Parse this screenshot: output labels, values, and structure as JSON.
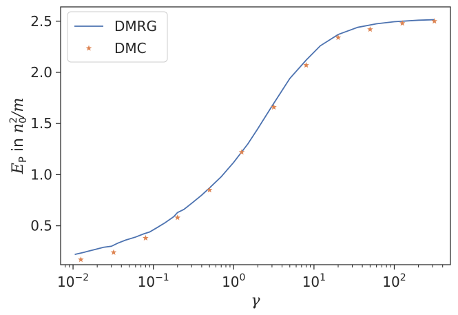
{
  "chart_data": {
    "type": "line",
    "xscale": "log",
    "xlim": [
      0.007,
      500
    ],
    "ylim": [
      0.12,
      2.64
    ],
    "xlabel": "γ",
    "ylabel": {
      "main": "E",
      "sub": "P",
      "mid": " in ",
      "n": "n",
      "nsub": "0",
      "nsup": "2",
      "tail": "/m"
    },
    "legend": {
      "placement": "top-left"
    },
    "x_ticks": [
      {
        "value": 0.01,
        "base": "10",
        "exp": "−2"
      },
      {
        "value": 0.1,
        "base": "10",
        "exp": "−1"
      },
      {
        "value": 1,
        "base": "10",
        "exp": "0"
      },
      {
        "value": 10,
        "base": "10",
        "exp": "1"
      },
      {
        "value": 100,
        "base": "10",
        "exp": "2"
      }
    ],
    "y_ticks": [
      {
        "value": 0.5,
        "label": "0.5"
      },
      {
        "value": 1.0,
        "label": "1.0"
      },
      {
        "value": 1.5,
        "label": "1.5"
      },
      {
        "value": 2.0,
        "label": "2.0"
      },
      {
        "value": 2.5,
        "label": "2.5"
      }
    ],
    "series": [
      {
        "name": "DMRG",
        "kind": "line",
        "color": "#4c72b0",
        "x": [
          0.0105,
          0.0135,
          0.018,
          0.024,
          0.03,
          0.036,
          0.045,
          0.06,
          0.075,
          0.09,
          0.11,
          0.14,
          0.18,
          0.2,
          0.24,
          0.3,
          0.4,
          0.5,
          0.7,
          1.0,
          1.5,
          2.0,
          3.0,
          5.0,
          8.0,
          12.0,
          20.0,
          35.0,
          60.0,
          100.0,
          200.0,
          320.0
        ],
        "y": [
          0.22,
          0.24,
          0.265,
          0.29,
          0.3,
          0.33,
          0.36,
          0.39,
          0.42,
          0.44,
          0.48,
          0.53,
          0.59,
          0.63,
          0.66,
          0.72,
          0.8,
          0.87,
          0.98,
          1.12,
          1.3,
          1.45,
          1.67,
          1.94,
          2.12,
          2.26,
          2.37,
          2.44,
          2.475,
          2.495,
          2.51,
          2.515
        ]
      },
      {
        "name": "DMC",
        "kind": "scatter",
        "color": "#dd8452",
        "x": [
          0.0125,
          0.032,
          0.08,
          0.2,
          0.5,
          1.26,
          3.16,
          8.0,
          20.0,
          50.0,
          126.0,
          316.0
        ],
        "y": [
          0.17,
          0.24,
          0.38,
          0.58,
          0.85,
          1.22,
          1.66,
          2.07,
          2.34,
          2.42,
          2.48,
          2.5
        ]
      }
    ]
  }
}
